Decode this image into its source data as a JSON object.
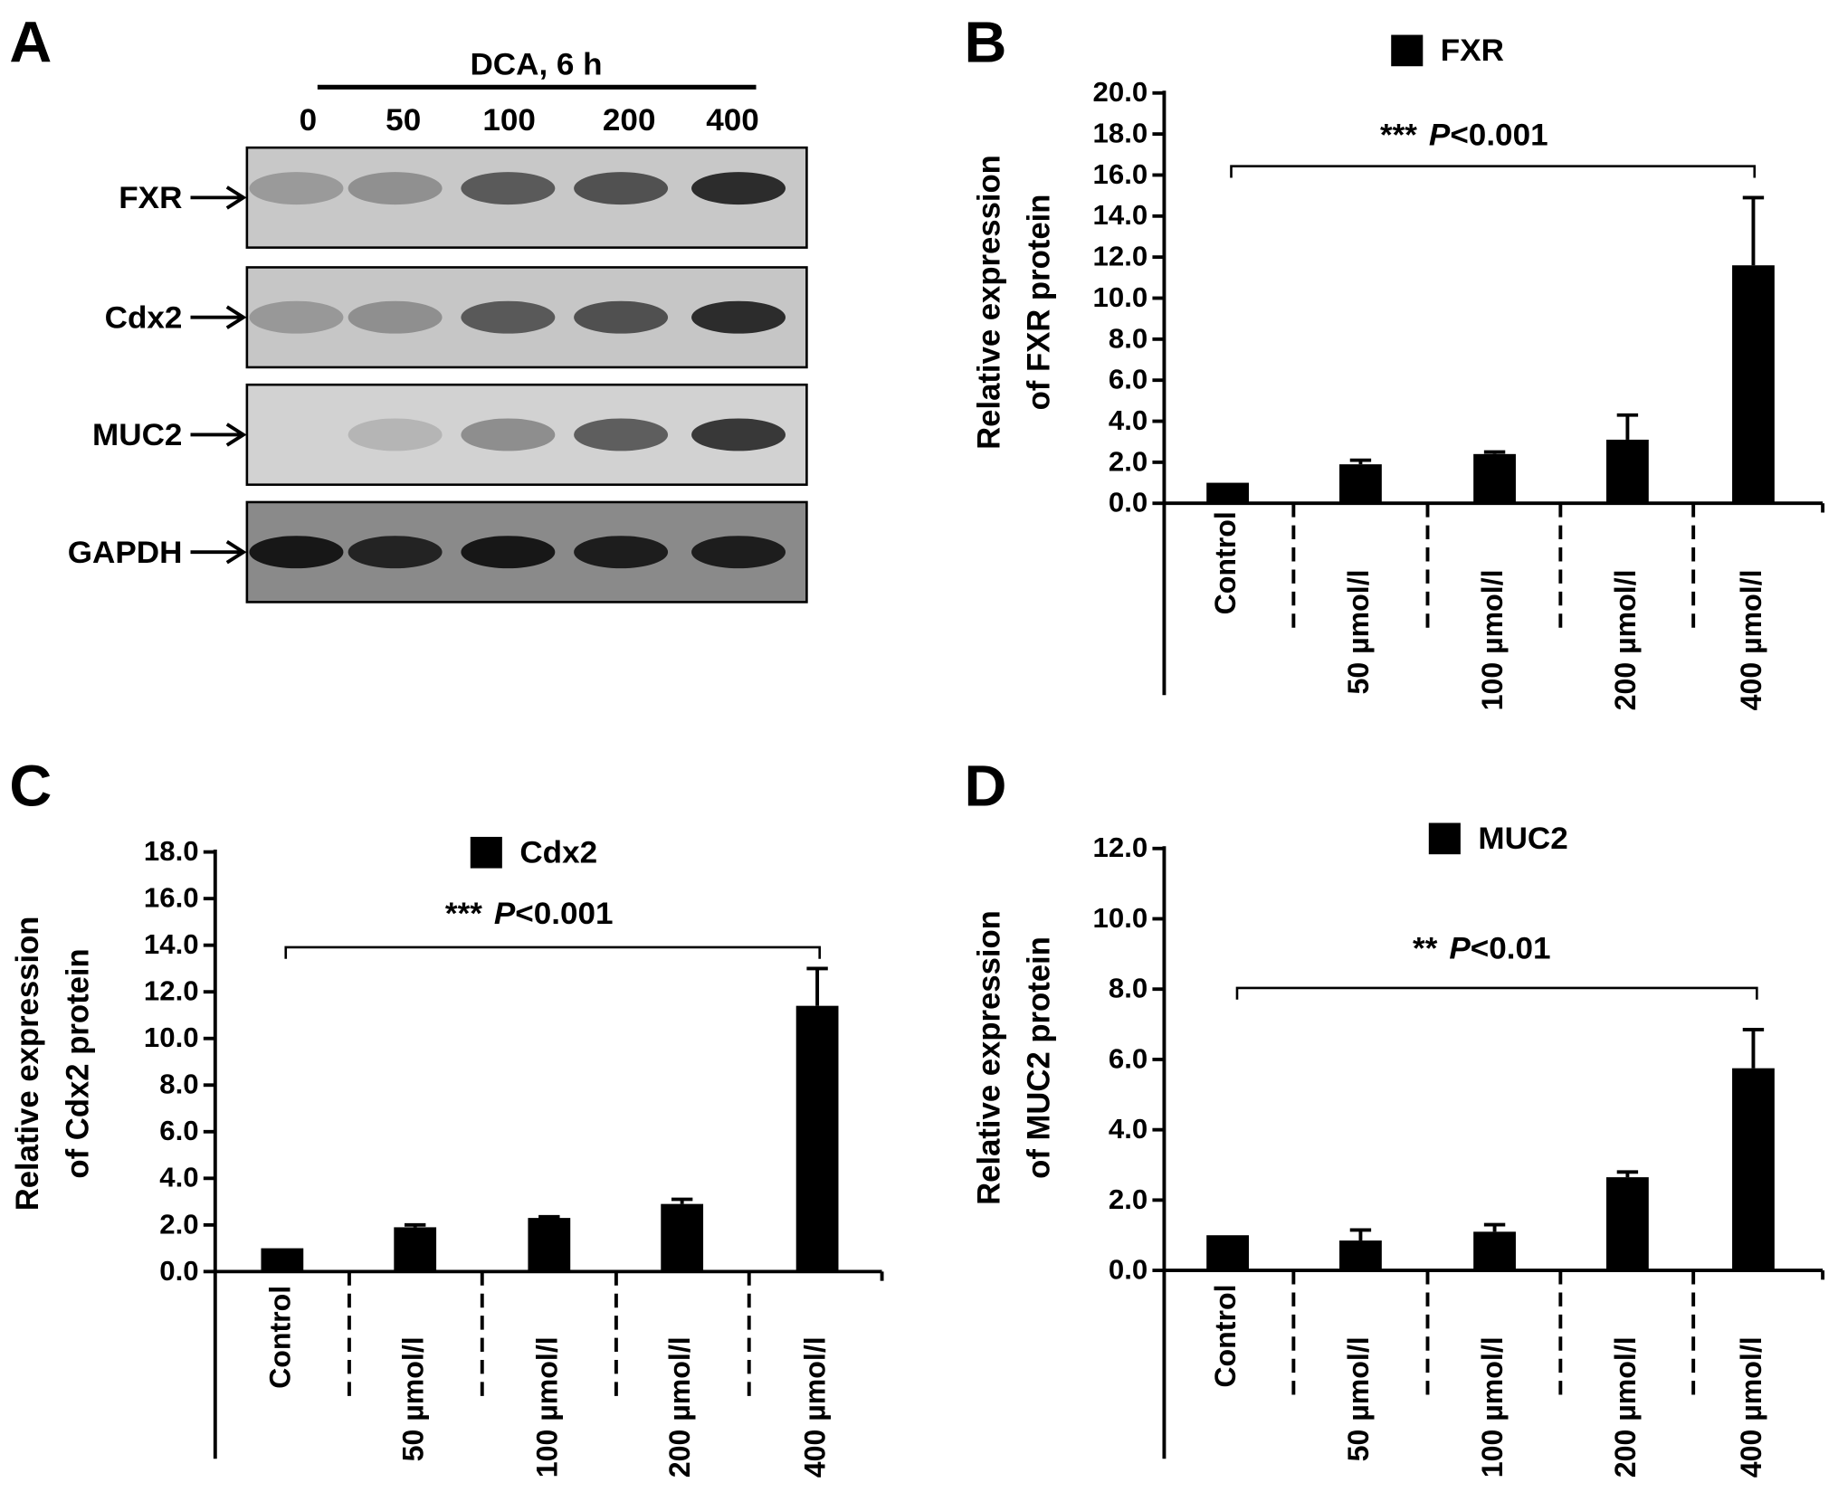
{
  "panel_a": {
    "letter": "A",
    "treatment": "DCA, 6 h",
    "lanes": [
      "0",
      "50",
      "100",
      "200",
      "400"
    ],
    "rows": [
      "FXR",
      "Cdx2",
      "MUC2",
      "GAPDH"
    ]
  },
  "chart_data": [
    {
      "type": "bar",
      "panel": "B",
      "legend": "FXR",
      "y_label": [
        "Relative expression",
        "of  FXR protein"
      ],
      "annotation": {
        "stars": "***",
        "p_label": "P",
        "threshold": "<0.001"
      },
      "categories": [
        "Control",
        "50 µmol/l",
        "100 µmol/l",
        "200 µmol/l",
        "400 µmol/l"
      ],
      "values": [
        1.0,
        1.9,
        2.4,
        3.1,
        11.6
      ],
      "errors": [
        0,
        0.2,
        0.1,
        1.2,
        3.3
      ],
      "color": "#000000",
      "ylim": [
        0,
        20
      ],
      "yticks": [
        {
          "value": 0,
          "label": "0.0"
        },
        {
          "value": 2,
          "label": "2.0"
        },
        {
          "value": 4,
          "label": "4.0"
        },
        {
          "value": 6,
          "label": "6.0"
        },
        {
          "value": 8,
          "label": "8.0"
        },
        {
          "value": 10,
          "label": "10.0"
        },
        {
          "value": 12,
          "label": "12.0"
        },
        {
          "value": 14,
          "label": "14.0"
        },
        {
          "value": 16,
          "label": "16.0"
        },
        {
          "value": 18,
          "label": "18.0"
        },
        {
          "value": 20,
          "label": "20.0"
        }
      ],
      "grid": false
    },
    {
      "type": "bar",
      "panel": "C",
      "legend": "Cdx2",
      "y_label": [
        "Relative expression",
        "of Cdx2 protein"
      ],
      "annotation": {
        "stars": "***",
        "p_label": "P",
        "threshold": "<0.001"
      },
      "categories": [
        "Control",
        "50 µmol/l",
        "100 µmol/l",
        "200 µmol/l",
        "400 µmol/l"
      ],
      "values": [
        1.0,
        1.9,
        2.3,
        2.9,
        11.4
      ],
      "errors": [
        0,
        0.1,
        0.05,
        0.2,
        1.6
      ],
      "color": "#000000",
      "ylim": [
        0,
        18
      ],
      "yticks": [
        {
          "value": 0,
          "label": "0.0"
        },
        {
          "value": 2,
          "label": "2.0"
        },
        {
          "value": 4,
          "label": "4.0"
        },
        {
          "value": 6,
          "label": "6.0"
        },
        {
          "value": 8,
          "label": "8.0"
        },
        {
          "value": 10,
          "label": "10.0"
        },
        {
          "value": 12,
          "label": "12.0"
        },
        {
          "value": 14,
          "label": "14.0"
        },
        {
          "value": 16,
          "label": "16.0"
        },
        {
          "value": 18,
          "label": "18.0"
        }
      ],
      "grid": false
    },
    {
      "type": "bar",
      "panel": "D",
      "legend": "MUC2",
      "y_label": [
        "Relative expression",
        "of  MUC2 protein"
      ],
      "annotation": {
        "stars": "**",
        "p_label": "P",
        "threshold": "<0.01"
      },
      "categories": [
        "Control",
        "50 µmol/l",
        "100 µmol/l",
        "200 µmol/l",
        "400 µmol/l"
      ],
      "values": [
        1.0,
        0.85,
        1.1,
        2.65,
        5.75
      ],
      "errors": [
        0,
        0.3,
        0.2,
        0.15,
        1.1
      ],
      "color": "#000000",
      "ylim": [
        0,
        12
      ],
      "yticks": [
        {
          "value": 0,
          "label": "0.0"
        },
        {
          "value": 2,
          "label": "2.0"
        },
        {
          "value": 4,
          "label": "4.0"
        },
        {
          "value": 6,
          "label": "6.0"
        },
        {
          "value": 8,
          "label": "8.0"
        },
        {
          "value": 10,
          "label": "10.0"
        },
        {
          "value": 12,
          "label": "12.0"
        }
      ],
      "grid": false
    }
  ]
}
